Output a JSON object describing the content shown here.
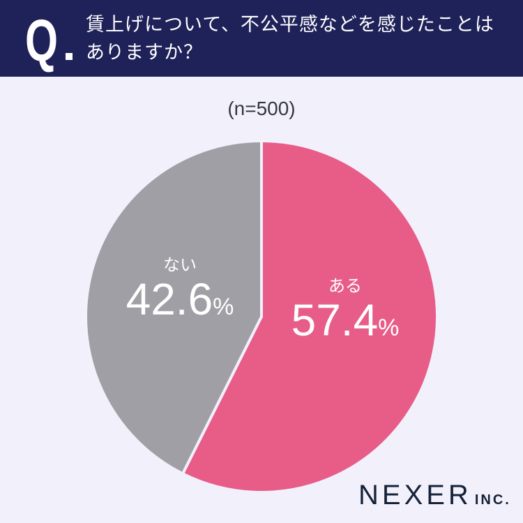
{
  "header": {
    "q_mark": "Q",
    "question": "賃上げについて、不公平感などを感じたことはありますか？"
  },
  "sample_size": "(n=500)",
  "slices": [
    {
      "label": "ある",
      "value": "57.4",
      "pct": "%",
      "color": "#e85c88"
    },
    {
      "label": "ない",
      "value": "42.6",
      "pct": "%",
      "color": "#a09fa6"
    }
  ],
  "logo": {
    "name": "NEXER",
    "suffix": "INC."
  },
  "chart_data": {
    "type": "pie",
    "title": "賃上げについて、不公平感などを感じたことはありますか？",
    "subtitle": "(n=500)",
    "categories": [
      "ある",
      "ない"
    ],
    "values": [
      57.4,
      42.6
    ],
    "colors": [
      "#e85c88",
      "#a09fa6"
    ],
    "start_angle": "12 o'clock, clockwise",
    "legend": "inline labels"
  }
}
